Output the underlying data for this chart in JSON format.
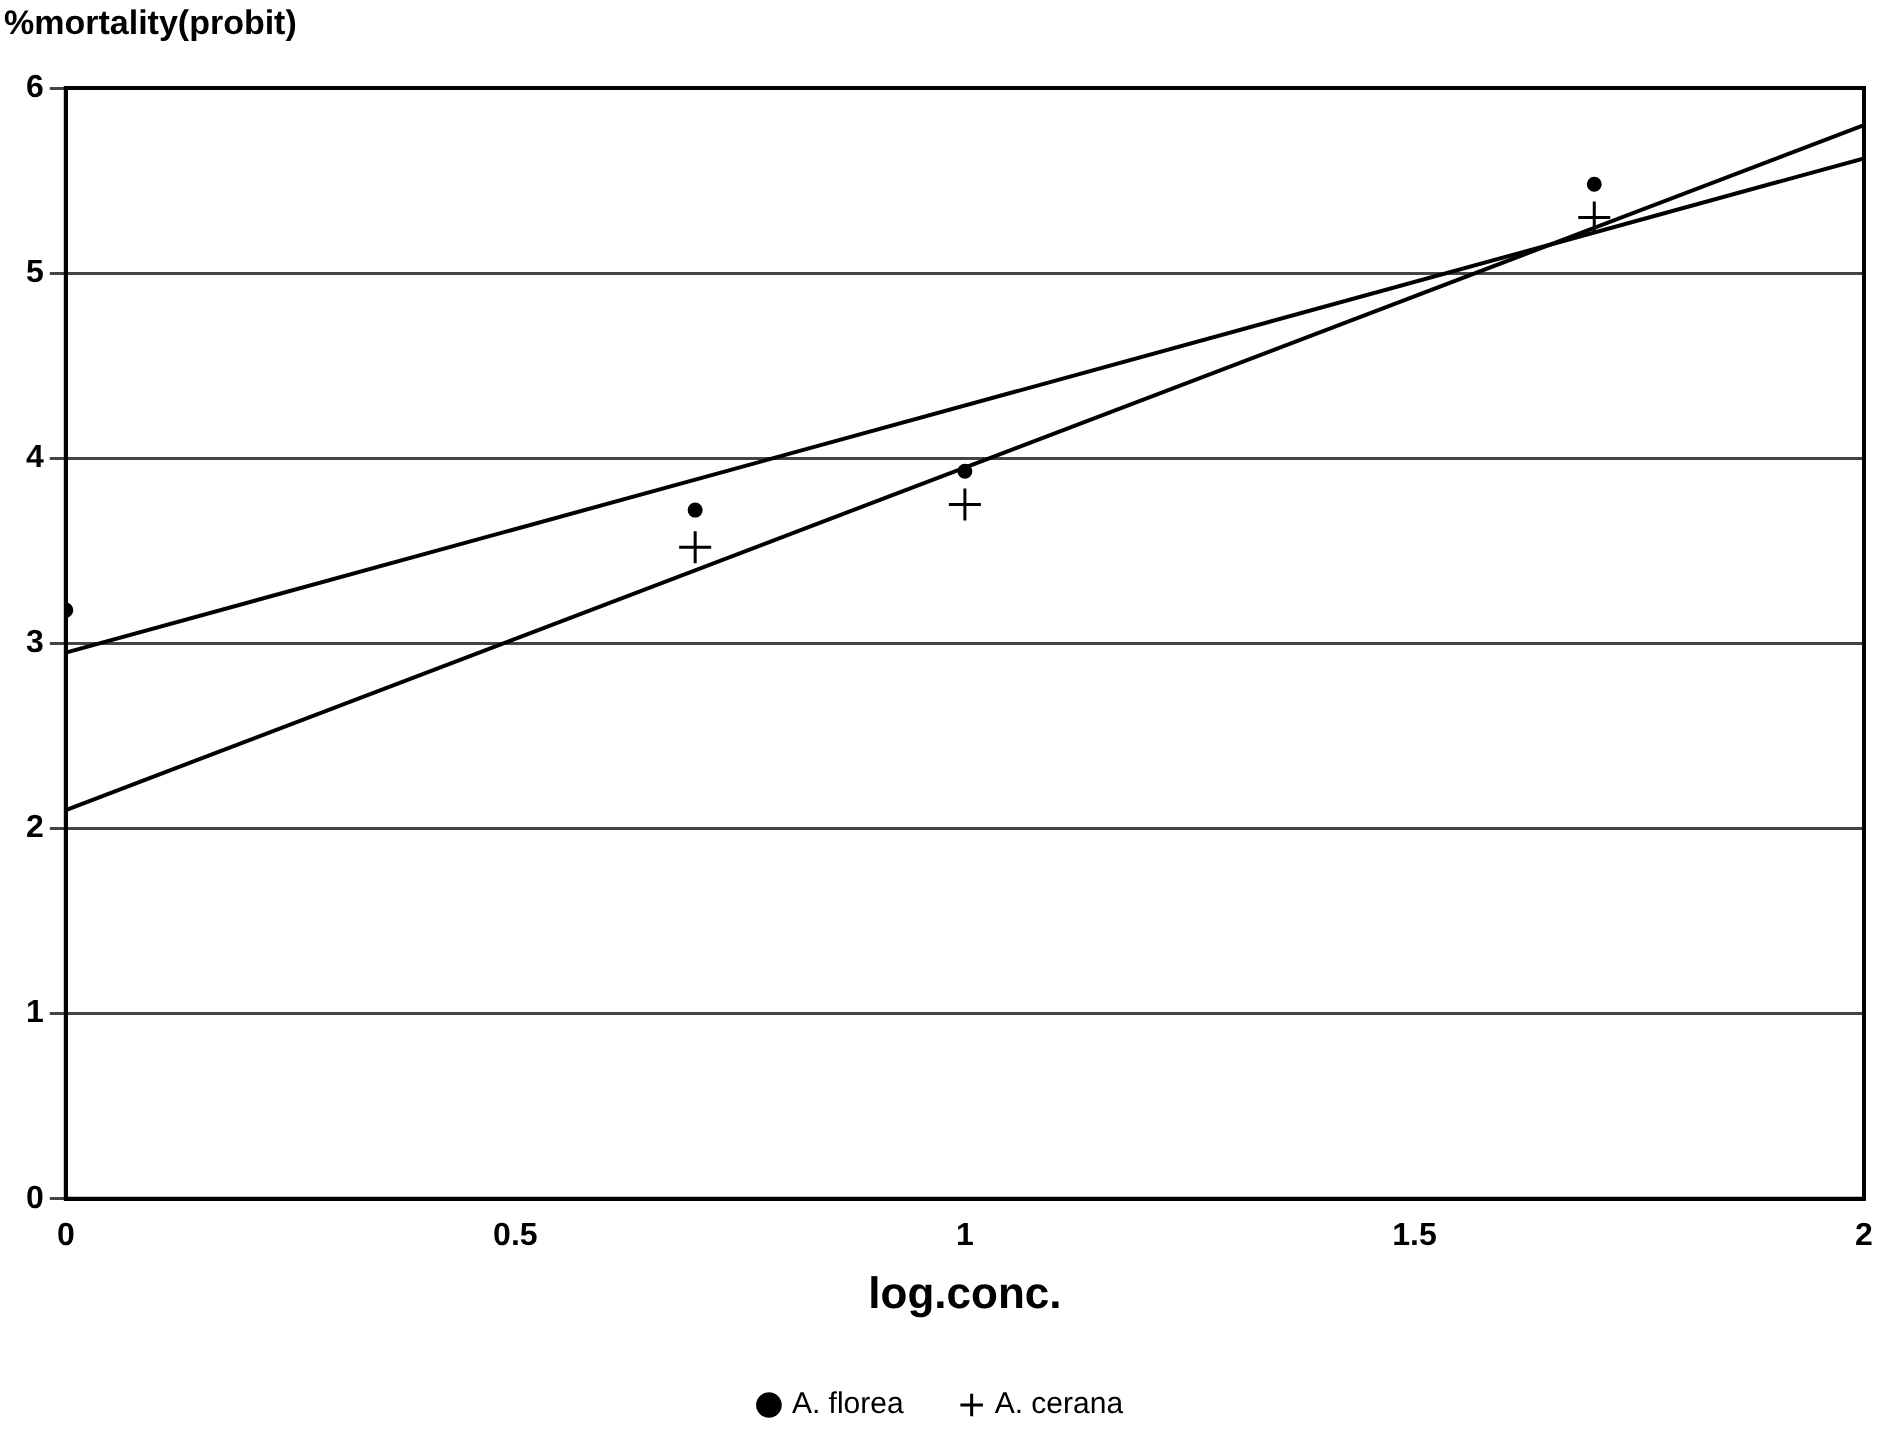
{
  "chart_data": {
    "type": "scatter",
    "xlabel": "log.conc.",
    "ylabel": "%mortality(probit)",
    "xlim": [
      0,
      2
    ],
    "xticks": [
      0,
      0.5,
      1,
      1.5,
      2
    ],
    "ylim": [
      0,
      6
    ],
    "yticks": [
      0,
      1,
      2,
      3,
      4,
      5,
      6
    ],
    "grid": "y",
    "legend": "bottom",
    "series": [
      {
        "name": "A. florea",
        "type": "scatter",
        "marker": "circle",
        "color": "#000000",
        "x": [
          0,
          0.7,
          1,
          1.7
        ],
        "values": [
          3.18,
          3.72,
          3.93,
          5.48
        ]
      },
      {
        "name": "A. cerana",
        "type": "scatter",
        "marker": "cross",
        "color": "#000000",
        "x": [
          0.7,
          1,
          1.7
        ],
        "values": [
          3.52,
          3.75,
          5.3
        ]
      },
      {
        "type": "line",
        "marker": "none",
        "color": "#000000",
        "x": [
          0,
          2
        ],
        "values": [
          2.95,
          5.62
        ]
      },
      {
        "type": "line",
        "marker": "none",
        "color": "#000000",
        "x": [
          0,
          2
        ],
        "values": [
          2.1,
          5.8
        ]
      }
    ]
  }
}
